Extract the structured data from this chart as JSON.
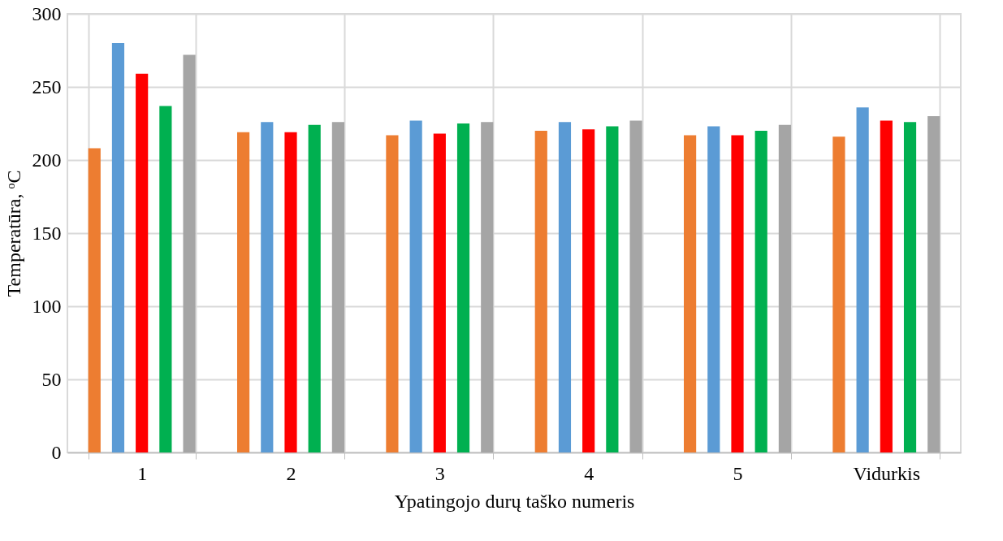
{
  "chart_data": {
    "type": "bar",
    "xlabel": "Ypatingojo durų taško numeris",
    "ylabel": "Temperatūra, ᵒC",
    "categories": [
      "1",
      "2",
      "3",
      "4",
      "5",
      "Vidurkis"
    ],
    "series": [
      {
        "color": "#ed7d31",
        "values": [
          208,
          219,
          217,
          220,
          217,
          216
        ]
      },
      {
        "color": "#5b9bd5",
        "values": [
          280,
          226,
          227,
          226,
          223,
          236
        ]
      },
      {
        "color": "#ff0000",
        "values": [
          259,
          219,
          218,
          221,
          217,
          227
        ]
      },
      {
        "color": "#00b050",
        "values": [
          237,
          224,
          225,
          223,
          220,
          226
        ]
      },
      {
        "color": "#a5a5a5",
        "values": [
          272,
          226,
          226,
          227,
          224,
          230
        ]
      }
    ],
    "ylim": [
      0,
      300
    ],
    "yticks": [
      0,
      50,
      100,
      150,
      200,
      250,
      300
    ],
    "grid": true,
    "legend": false
  }
}
